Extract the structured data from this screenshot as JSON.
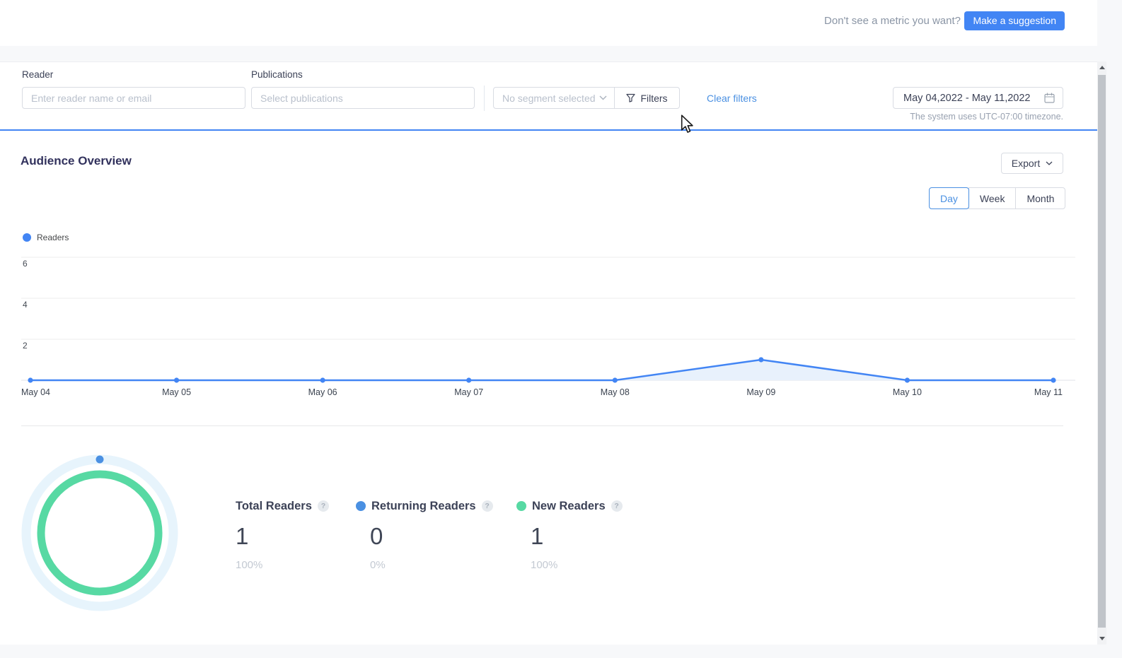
{
  "header": {
    "prompt": "Don't see a metric you want?",
    "suggestion_button": "Make a suggestion"
  },
  "filters": {
    "reader_label": "Reader",
    "reader_placeholder": "Enter reader name or email",
    "publications_label": "Publications",
    "publications_placeholder": "Select publications",
    "segment_placeholder": "No segment selected",
    "filters_button": "Filters",
    "clear_filters": "Clear filters",
    "date_range": "May 04,2022 -  May 11,2022",
    "timezone_note": "The system uses UTC-07:00 timezone."
  },
  "overview": {
    "title": "Audience Overview",
    "export_label": "Export",
    "granularity": {
      "options": [
        "Day",
        "Week",
        "Month"
      ],
      "selected": "Day"
    }
  },
  "chart_data": {
    "type": "line",
    "categories": [
      "May 04",
      "May 05",
      "May 06",
      "May 07",
      "May 08",
      "May 09",
      "May 10",
      "May 11"
    ],
    "series": [
      {
        "name": "Readers",
        "color": "#4285f4",
        "values": [
          0,
          0,
          0,
          0,
          0,
          1,
          0,
          0
        ]
      }
    ],
    "yticks": [
      2,
      4,
      6
    ],
    "ylim": [
      0,
      6
    ],
    "grid": true,
    "legend_position": "top-left",
    "area_fill": "#e8f1fc"
  },
  "summary": {
    "donut": {
      "track_color": "#e7f4fc",
      "rings": [
        {
          "name": "Returning Readers",
          "color": "#4a90e2",
          "percent": 0
        },
        {
          "name": "New Readers",
          "color": "#57d9a3",
          "percent": 100
        }
      ]
    },
    "metrics": [
      {
        "label": "Total Readers",
        "value": "1",
        "percent": "100%",
        "dot_color": null
      },
      {
        "label": "Returning Readers",
        "value": "0",
        "percent": "0%",
        "dot_color": "#4a90e2"
      },
      {
        "label": "New Readers",
        "value": "1",
        "percent": "100%",
        "dot_color": "#57d9a3"
      }
    ]
  },
  "icons": {
    "segment_dropdown": "chevron-down-icon",
    "filters": "funnel-icon",
    "date": "calendar-icon",
    "export": "chevron-down-icon",
    "metric_help": "question-mark-icon",
    "scroll_up": "triangle-up-icon",
    "scroll_down": "triangle-down-icon",
    "pointer": "mouse-cursor"
  },
  "colors": {
    "accent_blue": "#4285f4",
    "link_blue": "#4a90e2",
    "green": "#57d9a3",
    "pale_ring": "#e7f4fc",
    "panel_border_blue": "#4285f4"
  }
}
